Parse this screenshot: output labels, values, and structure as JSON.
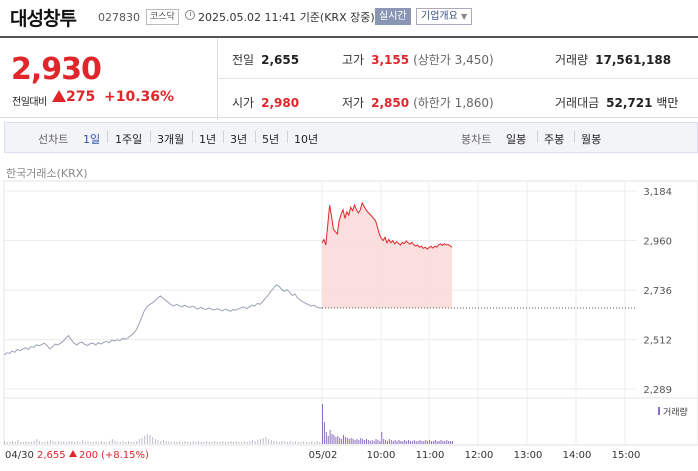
{
  "header": {
    "name": "대성창투",
    "code": "027830",
    "market": "코스닥",
    "datetime": "2025.05.02 11:41",
    "basis": "기준(KRX 장중)",
    "live_label": "실시간",
    "info_label": "기업개요"
  },
  "summary": {
    "price": "2,930",
    "change_label": "전일대비",
    "change": "275",
    "change_pct": "+10.36%",
    "prev_label": "전일",
    "prev": "2,655",
    "high_label": "고가",
    "high": "3,155",
    "upper_limit": "(상한가 3,450)",
    "volume_label": "거래량",
    "volume": "17,561,188",
    "open_label": "시가",
    "open": "2,980",
    "low_label": "저가",
    "low": "2,850",
    "lower_limit": "(하한가 1,860)",
    "amount_label": "거래대금",
    "amount": "52,721",
    "amount_unit": "백만"
  },
  "period_tabs": {
    "line_label": "선차트",
    "line_items": [
      "1일",
      "1주일",
      "3개월",
      "1년",
      "3년",
      "5년",
      "10년"
    ],
    "candle_label": "봉차트",
    "candle_items": [
      "일봉",
      "주봉",
      "월봉"
    ],
    "selected": "1일"
  },
  "chart_source": "한국거래소(KRX)",
  "colors": {
    "up": "#e0262a",
    "volume": "#8a6fc4",
    "prev_line": "#9aa2b8",
    "fill": "#fbdcdc"
  },
  "chart_data": {
    "type": "line",
    "ylabel_ticks": [
      "3,184",
      "2,960",
      "2,736",
      "2,512",
      "2,289"
    ],
    "y_ticks": [
      3184,
      2960,
      2736,
      2512,
      2289
    ],
    "ylim": [
      2289,
      3184
    ],
    "reference_price": 2655,
    "x_tick_labels": [
      "04/30",
      "05/02",
      "10:00",
      "11:00",
      "12:00",
      "13:00",
      "14:00",
      "15:00"
    ],
    "prev_day_label": "04/30",
    "prev_day_close": "2,655",
    "prev_day_change": "200",
    "prev_day_change_pct": "(+8.15%)",
    "volume_label": "거래량",
    "series": [
      {
        "day": "04/30",
        "values": [
          2442,
          2452,
          2450,
          2460,
          2455,
          2468,
          2462,
          2470,
          2475,
          2468,
          2480,
          2478,
          2488,
          2485,
          2490,
          2496,
          2485,
          2470,
          2480,
          2492,
          2488,
          2496,
          2505,
          2520,
          2530,
          2510,
          2496,
          2488,
          2498,
          2500,
          2490,
          2486,
          2494,
          2496,
          2488,
          2498,
          2492,
          2500,
          2504,
          2498,
          2510,
          2506,
          2512,
          2508,
          2518,
          2514,
          2520,
          2530,
          2540,
          2555,
          2580,
          2610,
          2640,
          2660,
          2670,
          2678,
          2688,
          2700,
          2710,
          2700,
          2690,
          2680,
          2670,
          2664,
          2672,
          2666,
          2660,
          2668,
          2662,
          2658,
          2664,
          2656,
          2650,
          2658,
          2652,
          2648,
          2656,
          2650,
          2646,
          2652,
          2648,
          2642,
          2650,
          2646,
          2640,
          2648,
          2645,
          2652,
          2656,
          2660,
          2652,
          2660,
          2668,
          2664,
          2676,
          2672,
          2684,
          2700,
          2712,
          2730,
          2744,
          2760,
          2754,
          2740,
          2730,
          2738,
          2726,
          2712,
          2718,
          2700,
          2690,
          2682,
          2676,
          2670,
          2664,
          2668,
          2660,
          2655,
          2655
        ]
      },
      {
        "day": "05/02",
        "values": [
          2950,
          2965,
          2940,
          3030,
          3120,
          3070,
          3010,
          3000,
          2990,
          3050,
          3080,
          3100,
          3060,
          3090,
          3075,
          3110,
          3095,
          3120,
          3100,
          3085,
          3098,
          3130,
          3115,
          3100,
          3088,
          3080,
          3070,
          3060,
          3050,
          3020,
          2990,
          2970,
          2960,
          2975,
          2950,
          2965,
          2950,
          2960,
          2945,
          2955,
          2948,
          2940,
          2952,
          2946,
          2958,
          2950,
          2944,
          2952,
          2942,
          2935,
          2940,
          2930,
          2935,
          2925,
          2930,
          2922,
          2928,
          2934,
          2926,
          2935,
          2930,
          2940,
          2945,
          2938,
          2946,
          2940,
          2942,
          2936,
          2930
        ]
      }
    ],
    "volume": [
      [
        3,
        2,
        2,
        3,
        2,
        4,
        2,
        2,
        3,
        2,
        2,
        3,
        5,
        3,
        2,
        2,
        3,
        4,
        3,
        2,
        3,
        2,
        3,
        2,
        3,
        3,
        2,
        3,
        2,
        4,
        2,
        3,
        2,
        2,
        3,
        2,
        3,
        2,
        2,
        3,
        5,
        3,
        2,
        2,
        3,
        2,
        3,
        2,
        2,
        3,
        5,
        6,
        8,
        10,
        9,
        7,
        5,
        4,
        3,
        4,
        3,
        3,
        2,
        3,
        2,
        3,
        2,
        3,
        2,
        2,
        3,
        2,
        3,
        2,
        2,
        3,
        2,
        2,
        3,
        2,
        2,
        3,
        2,
        2,
        3,
        2,
        3,
        2,
        2,
        3,
        2,
        3,
        4,
        3,
        4,
        5,
        6,
        7,
        5,
        4,
        3,
        3,
        2,
        3,
        3,
        2,
        3,
        2,
        3,
        2,
        2,
        3,
        2,
        2,
        3,
        2,
        3,
        2,
        2
      ],
      [
        40,
        22,
        12,
        8,
        14,
        10,
        9,
        7,
        8,
        6,
        5,
        9,
        7,
        6,
        5,
        6,
        5,
        4,
        5,
        4,
        6,
        5,
        4,
        5,
        4,
        3,
        4,
        3,
        5,
        4,
        3,
        12,
        5,
        4,
        3,
        5,
        4,
        3,
        4,
        3,
        4,
        3,
        3,
        4,
        3,
        4,
        3,
        3,
        4,
        3,
        3,
        4,
        3,
        3,
        4,
        3,
        4,
        3,
        3,
        4,
        3,
        3,
        4,
        3,
        3,
        4,
        3,
        3,
        3
      ]
    ]
  }
}
